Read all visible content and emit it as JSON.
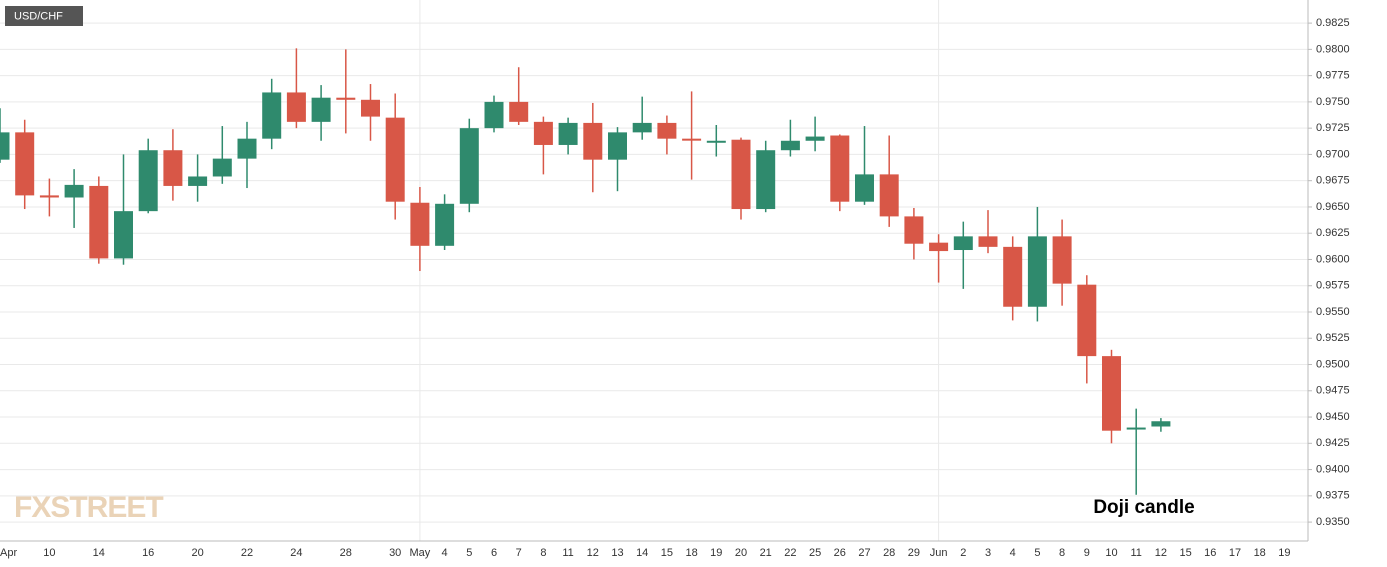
{
  "chart_data": {
    "type": "candlestick",
    "title": "USD/CHF",
    "annotation": "Doji candle",
    "watermark": "FXSTREET",
    "categories": [
      "Apr",
      null,
      "10",
      null,
      "14",
      null,
      "16",
      null,
      "20",
      null,
      "22",
      null,
      "24",
      null,
      "28",
      null,
      "30",
      "May",
      "4",
      "5",
      "6",
      "7",
      "8",
      "11",
      "12",
      "13",
      "14",
      "15",
      "18",
      "19",
      "20",
      "21",
      "22",
      "25",
      "26",
      "27",
      "28",
      "29",
      "Jun",
      "2",
      "3",
      "4",
      "5",
      "8",
      "9",
      "10",
      "11",
      "12",
      "15",
      "16",
      "17",
      "18",
      "19"
    ],
    "open": [
      0.9695,
      0.9721,
      0.9661,
      0.9659,
      0.967,
      0.9601,
      0.9646,
      0.9704,
      0.967,
      0.9679,
      0.9696,
      0.9715,
      0.9759,
      0.9731,
      0.9754,
      0.9752,
      0.9735,
      0.9654,
      0.9613,
      0.9653,
      0.9725,
      0.975,
      0.9731,
      0.9709,
      0.973,
      0.9695,
      0.9721,
      0.973,
      0.9715,
      0.9712,
      0.9714,
      0.9648,
      0.9704,
      0.9713,
      0.9718,
      0.9655,
      0.9681,
      0.9641,
      0.9616,
      0.9609,
      0.9622,
      0.9612,
      0.9555,
      0.9622,
      0.9576,
      0.9508,
      0.9439,
      0.9441,
      null,
      null,
      null,
      null,
      null
    ],
    "high": [
      0.9744,
      0.9733,
      0.9677,
      0.9686,
      0.9679,
      0.97,
      0.9715,
      0.9724,
      0.97,
      0.9727,
      0.9731,
      0.9772,
      0.9801,
      0.9766,
      0.98,
      0.9767,
      0.9758,
      0.9669,
      0.9662,
      0.9734,
      0.9756,
      0.9783,
      0.9736,
      0.9735,
      0.9749,
      0.9726,
      0.9755,
      0.9737,
      0.976,
      0.9728,
      0.9716,
      0.9713,
      0.9733,
      0.9736,
      0.9719,
      0.9727,
      0.9718,
      0.9649,
      0.9624,
      0.9636,
      0.9647,
      0.9622,
      0.965,
      0.9638,
      0.9585,
      0.9514,
      0.9458,
      0.9449,
      null,
      null,
      null,
      null,
      null
    ],
    "low": [
      0.9692,
      0.9648,
      0.9641,
      0.963,
      0.9596,
      0.9595,
      0.9644,
      0.9656,
      0.9655,
      0.9672,
      0.9668,
      0.9705,
      0.9725,
      0.9713,
      0.972,
      0.9713,
      0.9638,
      0.9589,
      0.9609,
      0.9645,
      0.9721,
      0.9728,
      0.9681,
      0.97,
      0.9664,
      0.9665,
      0.9714,
      0.97,
      0.9676,
      0.9698,
      0.9638,
      0.9645,
      0.9698,
      0.9703,
      0.9646,
      0.9652,
      0.9631,
      0.96,
      0.9578,
      0.9572,
      0.9606,
      0.9542,
      0.9541,
      0.9556,
      0.9482,
      0.9425,
      0.9376,
      0.9436,
      null,
      null,
      null,
      null,
      null
    ],
    "close": [
      0.9721,
      0.9661,
      0.9659,
      0.9671,
      0.9601,
      0.9646,
      0.9704,
      0.967,
      0.9679,
      0.9696,
      0.9715,
      0.9759,
      0.9731,
      0.9754,
      0.9752,
      0.9736,
      0.9655,
      0.9613,
      0.9653,
      0.9725,
      0.975,
      0.9731,
      0.9709,
      0.973,
      0.9695,
      0.9721,
      0.973,
      0.9715,
      0.9714,
      0.9713,
      0.9648,
      0.9704,
      0.9713,
      0.9717,
      0.9655,
      0.9681,
      0.9641,
      0.9615,
      0.9608,
      0.9622,
      0.9612,
      0.9555,
      0.9622,
      0.9577,
      0.9508,
      0.9437,
      0.944,
      0.9446,
      null,
      null,
      null,
      null,
      null
    ],
    "up_color": "#2f8a6d",
    "down_color": "#d85747",
    "ylim": [
      0.9332,
      0.9847
    ],
    "yticks": [
      {
        "value": 0.935,
        "label": "0.9350"
      },
      0.9375,
      {
        "value": 0.94,
        "label": "0.9400"
      },
      0.9425,
      {
        "value": 0.945,
        "label": "0.9450"
      },
      0.9475,
      {
        "value": 0.95,
        "label": "0.9500"
      },
      0.9525,
      {
        "value": 0.955,
        "label": "0.9550"
      },
      0.9575,
      {
        "value": 0.96,
        "label": "0.9600"
      },
      0.9625,
      {
        "value": 0.965,
        "label": "0.9650"
      },
      0.9675,
      {
        "value": 0.97,
        "label": "0.9700"
      },
      0.9725,
      {
        "value": 0.975,
        "label": "0.9750"
      },
      0.9775,
      {
        "value": 0.98,
        "label": "0.9800"
      },
      0.9825
    ],
    "grid": true
  }
}
